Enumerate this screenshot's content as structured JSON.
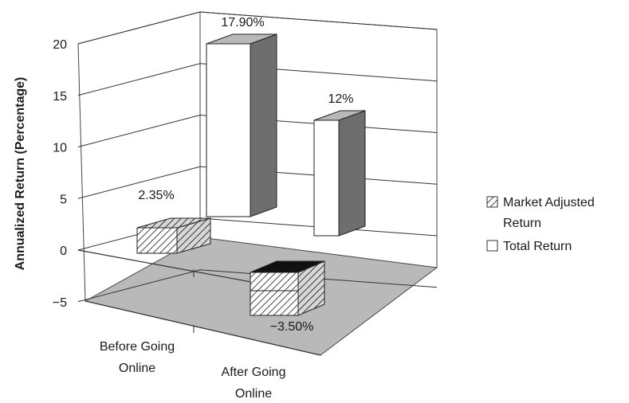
{
  "chart_data": {
    "type": "bar",
    "categories": [
      "Before Going Online",
      "After Going Online"
    ],
    "category_lines": [
      [
        "Before Going",
        "Online"
      ],
      [
        "After Going",
        "Online"
      ]
    ],
    "series": [
      {
        "name": "Market Adjusted Return",
        "legend_lines": [
          "Market Adjusted",
          "Return"
        ],
        "values": [
          2.35,
          -3.5
        ],
        "data_labels": [
          "2.35%",
          "−3.50%"
        ]
      },
      {
        "name": "Total Return",
        "legend_lines": [
          "Total Return"
        ],
        "values": [
          17.9,
          12
        ],
        "data_labels": [
          "17.90%",
          "12%"
        ]
      }
    ],
    "ylabel": "Annualized Return (Percentage)",
    "ylim": [
      -5,
      20
    ],
    "yticks": [
      20,
      15,
      10,
      5,
      0,
      -5
    ],
    "ytick_labels": [
      "20",
      "15",
      "10",
      "5",
      "0",
      "−5"
    ],
    "grid": true,
    "legend_position": "right",
    "colors": {
      "bar_front": "#ffffff",
      "bar_side": "#6e6e6e",
      "bar_top": "#b8b8b8",
      "hatch": "#555555",
      "floor": "#b9b9b9",
      "gridline": "#333333",
      "negative_top": "#111111"
    }
  }
}
